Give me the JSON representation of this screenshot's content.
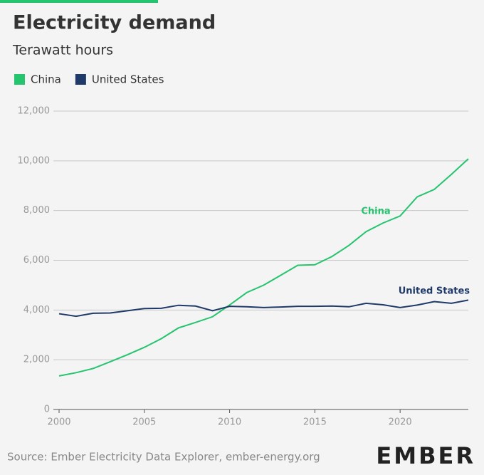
{
  "chart_data": {
    "type": "line",
    "title": "Electricity demand",
    "subtitle": "Terawatt hours",
    "x": [
      2000,
      2001,
      2002,
      2003,
      2004,
      2005,
      2006,
      2007,
      2008,
      2009,
      2010,
      2011,
      2012,
      2013,
      2014,
      2015,
      2016,
      2017,
      2018,
      2019,
      2020,
      2021,
      2022,
      2023,
      2024
    ],
    "series": [
      {
        "name": "China",
        "color": "#25c46e",
        "label": "China",
        "values": [
          1350,
          1480,
          1650,
          1920,
          2200,
          2500,
          2850,
          3280,
          3500,
          3730,
          4200,
          4700,
          5000,
          5400,
          5800,
          5820,
          6150,
          6600,
          7150,
          7500,
          7780,
          8550,
          8850,
          9450,
          10080
        ]
      },
      {
        "name": "United States",
        "color": "#1f3a68",
        "label": "United States",
        "values": [
          3850,
          3750,
          3870,
          3880,
          3970,
          4060,
          4070,
          4190,
          4160,
          3970,
          4150,
          4130,
          4100,
          4120,
          4150,
          4150,
          4160,
          4130,
          4270,
          4210,
          4100,
          4200,
          4340,
          4270,
          4400
        ]
      }
    ],
    "xlim": [
      2000,
      2024
    ],
    "xticks": [
      2000,
      2005,
      2010,
      2015,
      2020
    ],
    "ylim": [
      0,
      12000
    ],
    "yticks": [
      0,
      {
        "value": 2000,
        "label": "2,000"
      },
      {
        "value": 4000,
        "label": "4,000"
      },
      {
        "value": 6000,
        "label": "6,000"
      },
      {
        "value": 8000,
        "label": "8,000"
      },
      {
        "value": 10000,
        "label": "10,000"
      },
      {
        "value": 12000,
        "label": "12,000"
      }
    ],
    "grid": true,
    "source": "Source: Ember Electricity Data Explorer, ember-energy.org",
    "logo": "EMBER"
  }
}
